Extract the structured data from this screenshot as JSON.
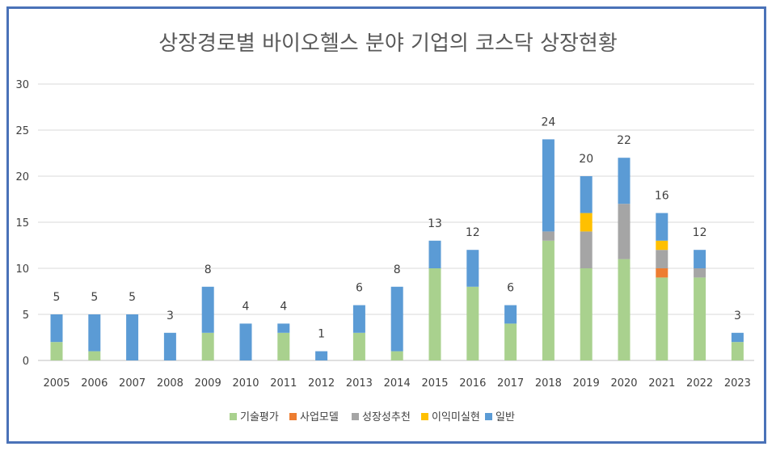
{
  "chart_data": {
    "type": "bar",
    "stacked": true,
    "title": "상장경로별 바이오헬스 분야 기업의 코스닥 상장현황",
    "xlabel": "",
    "ylabel": "",
    "ylim": [
      0,
      30
    ],
    "yticks": [
      0,
      5,
      10,
      15,
      20,
      25,
      30
    ],
    "grid": true,
    "legend_position": "bottom",
    "categories": [
      "2005",
      "2006",
      "2007",
      "2008",
      "2009",
      "2010",
      "2011",
      "2012",
      "2013",
      "2014",
      "2015",
      "2016",
      "2017",
      "2018",
      "2019",
      "2020",
      "2021",
      "2022",
      "2023"
    ],
    "series": [
      {
        "name": "기술평가",
        "color": "#a9d18e",
        "values": [
          2,
          1,
          0,
          0,
          3,
          0,
          3,
          0,
          3,
          1,
          10,
          8,
          4,
          13,
          10,
          11,
          9,
          9,
          2
        ]
      },
      {
        "name": "사업모델",
        "color": "#ed7d31",
        "values": [
          0,
          0,
          0,
          0,
          0,
          0,
          0,
          0,
          0,
          0,
          0,
          0,
          0,
          0,
          0,
          0,
          1,
          0,
          0
        ]
      },
      {
        "name": "성장성추천",
        "color": "#a5a5a5",
        "values": [
          0,
          0,
          0,
          0,
          0,
          0,
          0,
          0,
          0,
          0,
          0,
          0,
          0,
          1,
          4,
          6,
          2,
          1,
          0
        ]
      },
      {
        "name": "이익미실현",
        "color": "#ffc000",
        "values": [
          0,
          0,
          0,
          0,
          0,
          0,
          0,
          0,
          0,
          0,
          0,
          0,
          0,
          0,
          2,
          0,
          1,
          0,
          0
        ]
      },
      {
        "name": "일반",
        "color": "#5b9bd5",
        "values": [
          3,
          4,
          5,
          3,
          5,
          4,
          1,
          1,
          3,
          7,
          3,
          4,
          2,
          10,
          4,
          5,
          3,
          2,
          1
        ]
      }
    ],
    "totals": [
      5,
      5,
      5,
      3,
      8,
      4,
      4,
      1,
      6,
      8,
      13,
      12,
      6,
      24,
      20,
      22,
      16,
      12,
      3
    ]
  }
}
